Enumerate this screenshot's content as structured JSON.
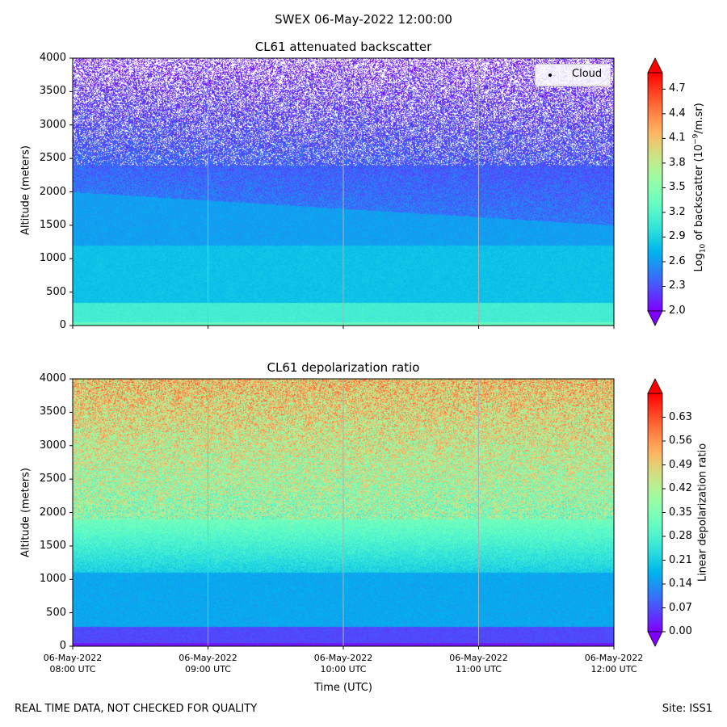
{
  "suptitle": "SWEX 06-May-2022 12:00:00",
  "footer_left": "REAL TIME DATA, NOT CHECKED FOR QUALITY",
  "footer_right": "Site: ISS1",
  "chart_data": [
    {
      "type": "heatmap",
      "title": "CL61 attenuated backscatter",
      "ylabel": "Altitude (meters)",
      "ylim": [
        0,
        4000
      ],
      "yticks": [
        "0",
        "500",
        "1000",
        "1500",
        "2000",
        "2500",
        "3000",
        "3500",
        "4000"
      ],
      "xlim": [
        "06-May-2022 08:00 UTC",
        "06-May-2022 12:00 UTC"
      ],
      "colorbar": {
        "label_prefix": "Log",
        "label_sub": "10",
        "label_mid": " of backscatter (10",
        "label_sup": "−9",
        "label_suffix": "/m.sr)",
        "ticks": [
          "2.0",
          "2.3",
          "2.6",
          "2.9",
          "3.2",
          "3.5",
          "3.8",
          "4.1",
          "4.4",
          "4.7"
        ],
        "range": [
          2.0,
          4.9
        ],
        "colormap": "rainbow",
        "extend": "both"
      },
      "legend": {
        "entries": [
          "Cloud"
        ],
        "position": "top-right"
      },
      "grid_x": true
    },
    {
      "type": "heatmap",
      "title": "CL61 depolarization ratio",
      "ylabel": "Altitude (meters)",
      "ylim": [
        0,
        4000
      ],
      "yticks": [
        "0",
        "500",
        "1000",
        "1500",
        "2000",
        "2500",
        "3000",
        "3500",
        "4000"
      ],
      "xlabel": "Time (UTC)",
      "xticks": [
        {
          "date": "06-May-2022",
          "time": "08:00 UTC"
        },
        {
          "date": "06-May-2022",
          "time": "09:00 UTC"
        },
        {
          "date": "06-May-2022",
          "time": "10:00 UTC"
        },
        {
          "date": "06-May-2022",
          "time": "11:00 UTC"
        },
        {
          "date": "06-May-2022",
          "time": "12:00 UTC"
        }
      ],
      "colorbar": {
        "label": "Linear depolarization ratio",
        "ticks": [
          "0.00",
          "0.07",
          "0.14",
          "0.21",
          "0.28",
          "0.35",
          "0.42",
          "0.49",
          "0.56",
          "0.63"
        ],
        "range": [
          0.0,
          0.7
        ],
        "colormap": "rainbow",
        "extend": "both"
      },
      "grid_x": true
    }
  ]
}
